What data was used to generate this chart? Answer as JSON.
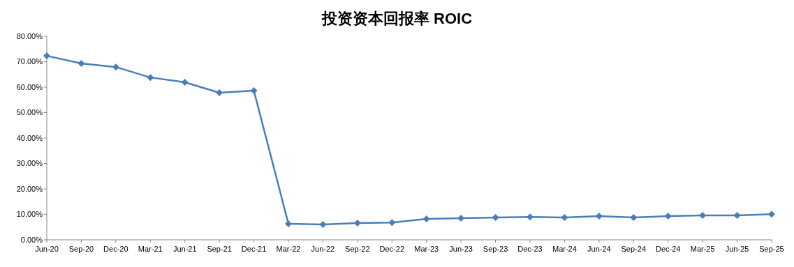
{
  "chart_data": {
    "type": "line",
    "title": "投资资本回报率 ROIC",
    "categories": [
      "Jun-20",
      "Sep-20",
      "Dec-20",
      "Mar-21",
      "Jun-21",
      "Sep-21",
      "Dec-21",
      "Mar-22",
      "Jun-22",
      "Sep-22",
      "Dec-22",
      "Mar-23",
      "Jun-23",
      "Sep-23",
      "Dec-23",
      "Mar-24",
      "Jun-24",
      "Sep-24",
      "Dec-24",
      "Mar-25",
      "Jun-25",
      "Sep-25"
    ],
    "series": [
      {
        "color": "#4a7ebb",
        "values": [
          72.3,
          69.3,
          67.9,
          63.8,
          61.9,
          57.8,
          58.6,
          6.3,
          6.0,
          6.6,
          6.8,
          8.2,
          8.5,
          8.8,
          9.0,
          8.8,
          9.3,
          8.8,
          9.3,
          9.6,
          9.6,
          10.1
        ]
      }
    ],
    "ylim": [
      0,
      80
    ],
    "yticks": [
      {
        "value": 0,
        "label": "0.00%"
      },
      {
        "value": 10,
        "label": "10.00%"
      },
      {
        "value": 20,
        "label": "20.00%"
      },
      {
        "value": 30,
        "label": "30.00%"
      },
      {
        "value": 40,
        "label": "40.00%"
      },
      {
        "value": 50,
        "label": "50.00%"
      },
      {
        "value": 60,
        "label": "60.00%"
      },
      {
        "value": 70,
        "label": "70.00%"
      },
      {
        "value": 80,
        "label": "80.00%"
      }
    ],
    "grid": false,
    "marker": "diamond",
    "line_style": "solid"
  }
}
